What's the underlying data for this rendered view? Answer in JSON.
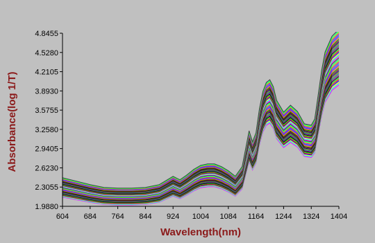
{
  "chart_data": {
    "type": "line",
    "title": "",
    "xlabel": "Wavelength(nm)",
    "ylabel": "Absorbance(log 1/T)",
    "xlim": [
      604,
      1404
    ],
    "ylim": [
      1.988,
      4.8455
    ],
    "x_ticks": [
      "604",
      "684",
      "764",
      "844",
      "924",
      "1004",
      "1084",
      "1164",
      "1244",
      "1324",
      "1404"
    ],
    "y_ticks": [
      "4.8455",
      "4.5280",
      "4.2105",
      "3.8930",
      "3.5755",
      "3.2580",
      "2.9405",
      "2.6230",
      "2.3055",
      "1.9880"
    ],
    "grid": false,
    "legend": "none",
    "plot_background": "#c0c0c0",
    "axis_title_color": "#8b1a1a",
    "series_count": 40,
    "series_colors": [
      "#ff00ff",
      "#00ffff",
      "#ffff00",
      "#0000ff",
      "#ff0000",
      "#00ff00",
      "#000000",
      "#800080",
      "#008080",
      "#808000",
      "#000080",
      "#800000",
      "#008000",
      "#ff8000",
      "#8000ff",
      "#0080ff",
      "#ff0080",
      "#80ff00",
      "#00ff80",
      "#404040"
    ],
    "x": [
      604,
      644,
      684,
      724,
      764,
      804,
      844,
      884,
      904,
      924,
      944,
      964,
      984,
      1004,
      1024,
      1044,
      1064,
      1084,
      1104,
      1124,
      1134,
      1144,
      1154,
      1164,
      1174,
      1184,
      1194,
      1204,
      1214,
      1224,
      1244,
      1264,
      1284,
      1304,
      1324,
      1334,
      1344,
      1354,
      1364,
      1384,
      1404
    ],
    "mean_spectrum": [
      2.3,
      2.25,
      2.2,
      2.16,
      2.15,
      2.15,
      2.16,
      2.2,
      2.26,
      2.32,
      2.27,
      2.34,
      2.42,
      2.48,
      2.5,
      2.5,
      2.46,
      2.4,
      2.32,
      2.46,
      2.72,
      2.98,
      2.82,
      2.95,
      3.3,
      3.55,
      3.68,
      3.72,
      3.62,
      3.42,
      3.25,
      3.35,
      3.26,
      3.08,
      3.06,
      3.15,
      3.5,
      3.85,
      4.12,
      4.35,
      4.45
    ]
  }
}
